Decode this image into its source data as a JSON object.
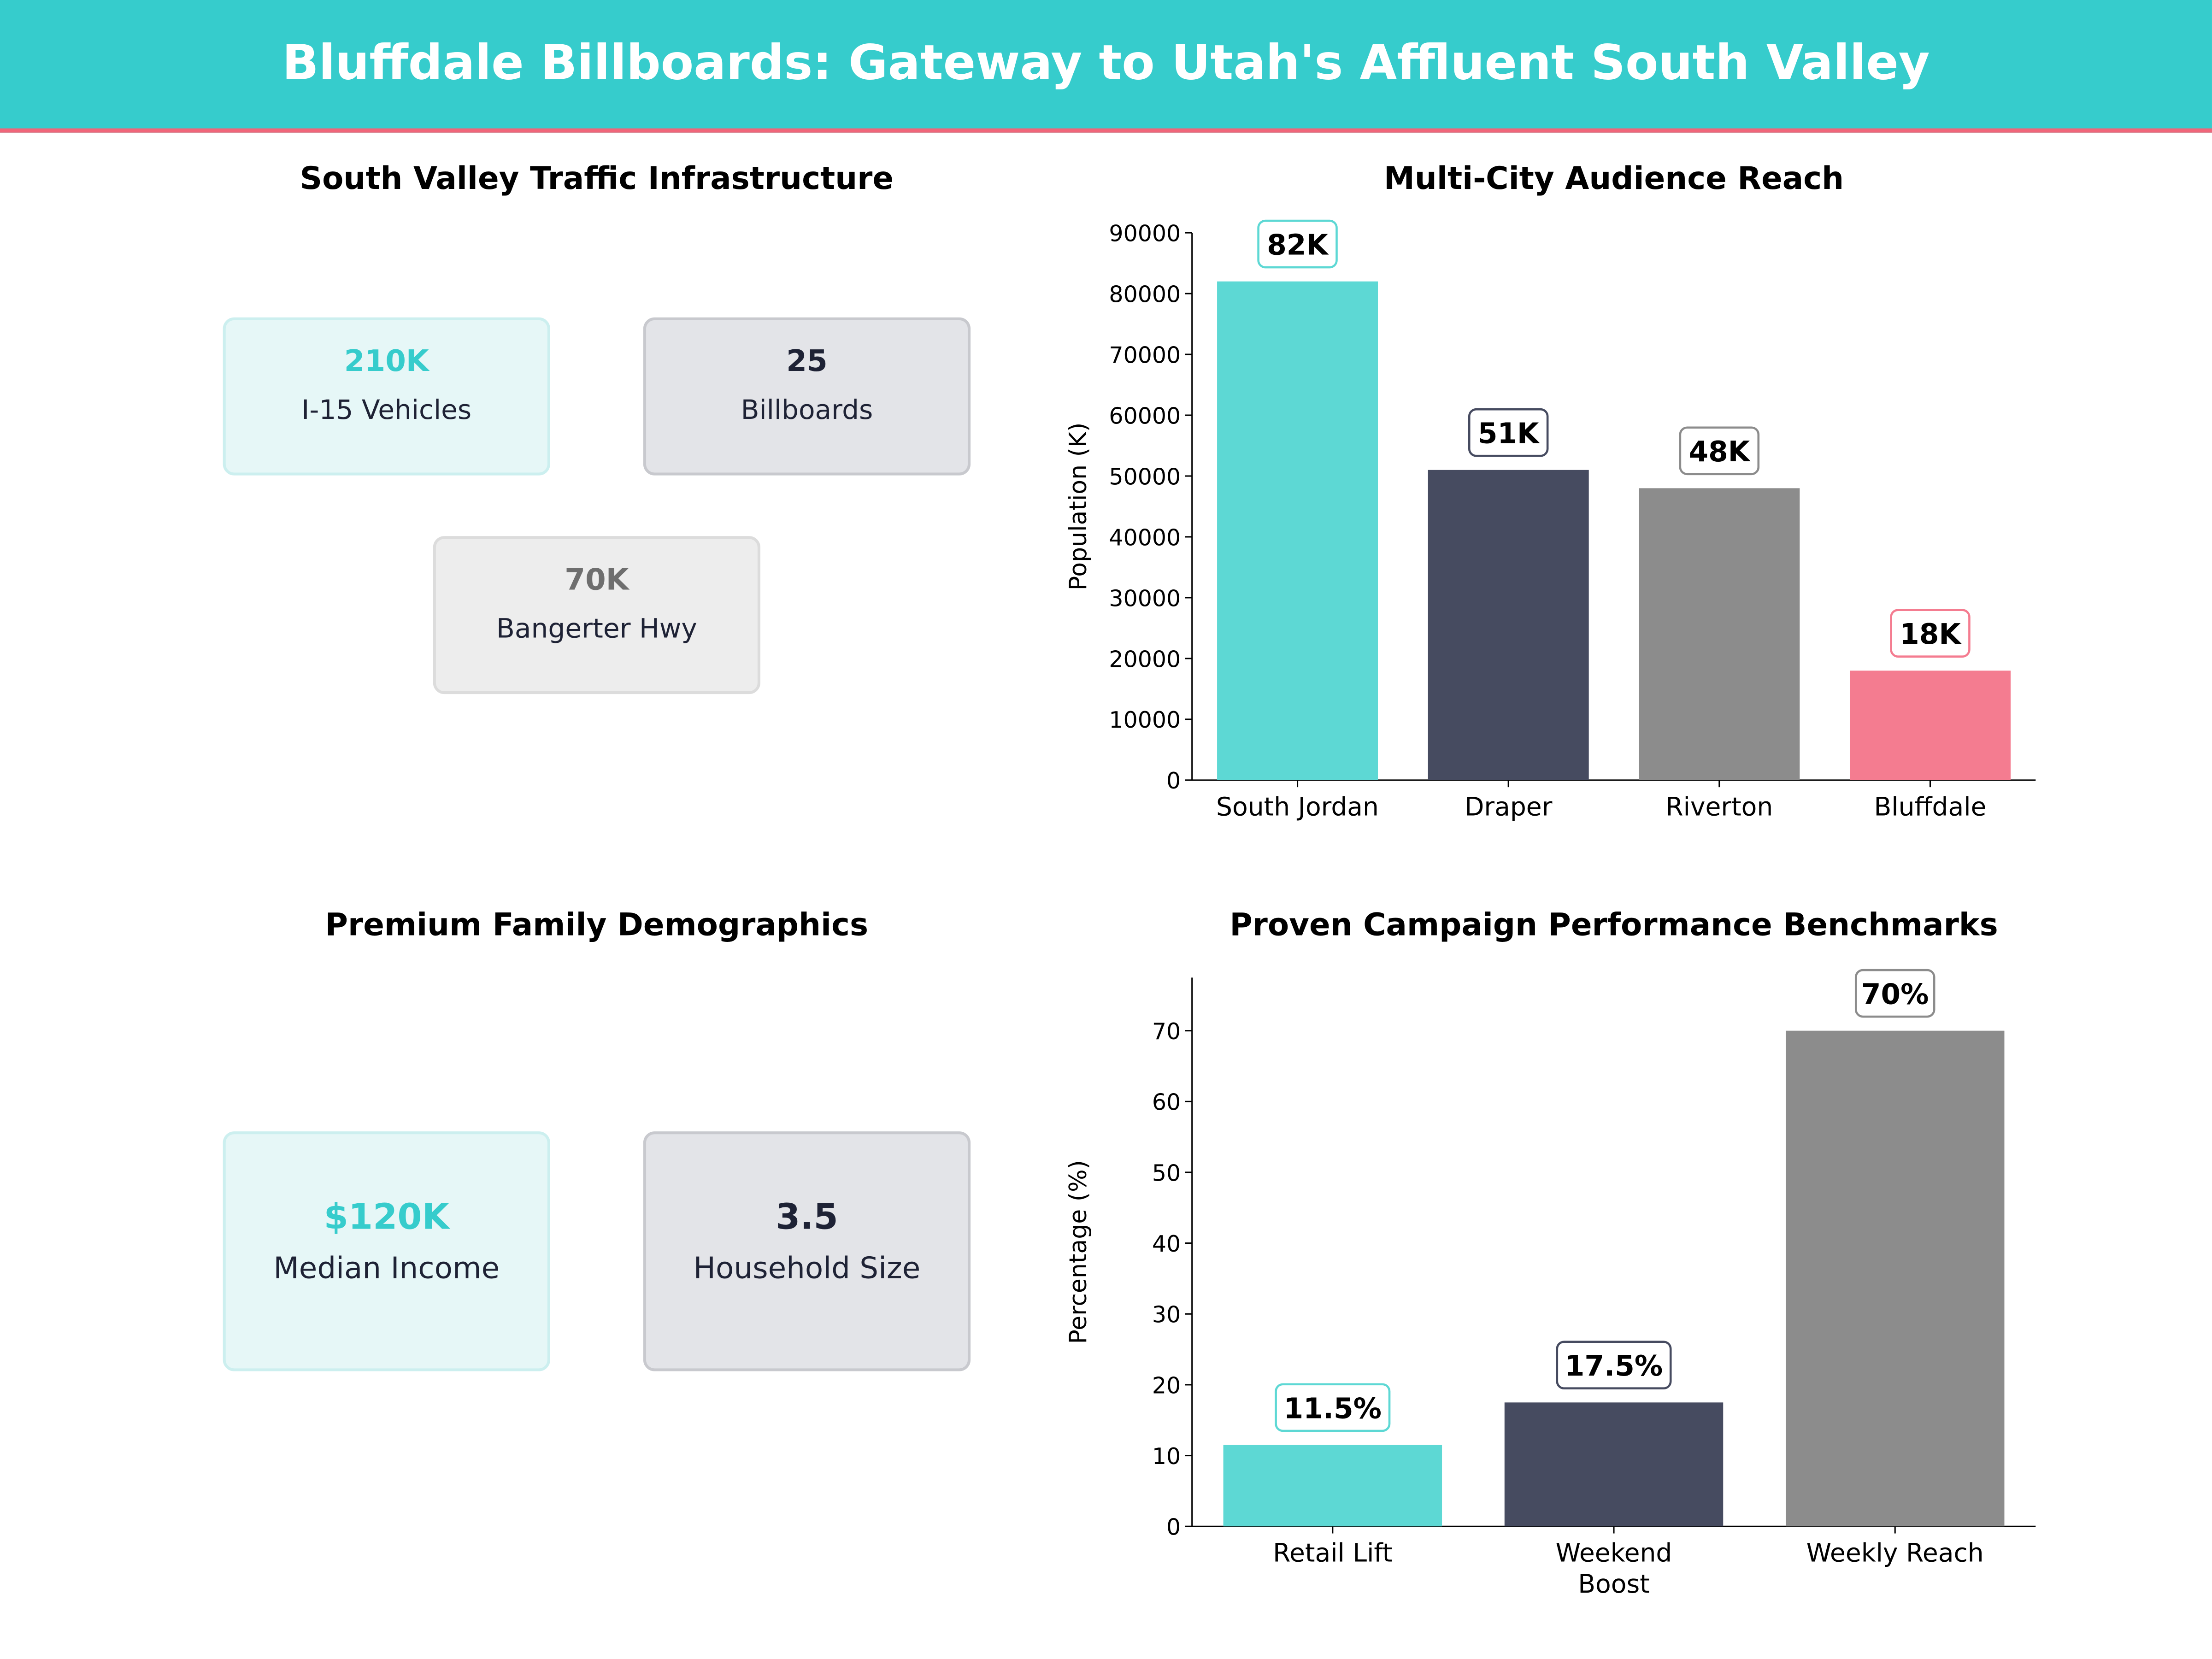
{
  "title": "Bluffdale Billboards: Gateway to Utah's Affluent South Valley",
  "colors": {
    "header": "#36CCCC",
    "accent_line": "#F0667A",
    "teal": "#5DD8D4",
    "navy": "#464B60",
    "gray": "#8C8C8C",
    "pink": "#F47C90"
  },
  "traffic": {
    "title": "South Valley Traffic Infrastructure",
    "cards": [
      {
        "value": "210K",
        "label": "I-15  Vehicles"
      },
      {
        "value": "25",
        "label": "Billboards"
      },
      {
        "value": "70K",
        "label": "Bangerter Hwy"
      }
    ]
  },
  "demographics": {
    "title": "Premium Family Demographics",
    "cards": [
      {
        "value": "$120K",
        "label": "Median Income"
      },
      {
        "value": "3.5",
        "label": "Household Size"
      }
    ]
  },
  "chart_data": [
    {
      "type": "bar",
      "title": "Multi-City Audience Reach",
      "ylabel": "Population (K)",
      "xlabel": "",
      "ylim": [
        0,
        90000
      ],
      "yticks": [
        0,
        10000,
        20000,
        30000,
        40000,
        50000,
        60000,
        70000,
        80000,
        90000
      ],
      "categories": [
        "South Jordan",
        "Draper",
        "Riverton",
        "Bluffdale"
      ],
      "values": [
        82000,
        51000,
        48000,
        18000
      ],
      "data_labels": [
        "82K",
        "51K",
        "48K",
        "18K"
      ],
      "bar_colors": [
        "#5DD8D4",
        "#464B60",
        "#8C8C8C",
        "#F47C90"
      ],
      "grid": false
    },
    {
      "type": "bar",
      "title": "Proven Campaign Performance Benchmarks",
      "ylabel": "Percentage (%)",
      "xlabel": "",
      "ylim": [
        0,
        77.5
      ],
      "yticks": [
        0,
        10,
        20,
        30,
        40,
        50,
        60,
        70
      ],
      "categories": [
        "Retail Lift",
        "Weekend\nBoost",
        "Weekly Reach"
      ],
      "values": [
        11.5,
        17.5,
        70
      ],
      "data_labels": [
        "11.5%",
        "17.5%",
        "70%"
      ],
      "bar_colors": [
        "#5DD8D4",
        "#464B60",
        "#8C8C8C"
      ],
      "grid": false
    }
  ]
}
